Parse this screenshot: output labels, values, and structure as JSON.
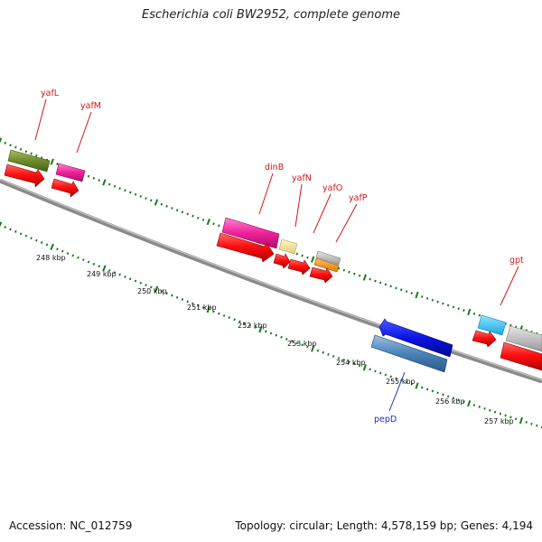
{
  "header": {
    "title": "Escherichia coli BW2952, complete genome"
  },
  "footer": {
    "accession": "Accession: NC_012759",
    "summary": "Topology: circular; Length: 4,578,159 bp; Genes: 4,194"
  },
  "axis": {
    "ticks": [
      "248 kbp",
      "249 kbp",
      "250 kbp",
      "251 kbp",
      "252 kbp",
      "253 kbp",
      "254 kbp",
      "255 kbp",
      "256 kbp",
      "257 kbp"
    ]
  },
  "genes": {
    "yafL": "yafL",
    "yafM": "yafM",
    "dinB": "dinB",
    "yafN": "yafN",
    "yafO": "yafO",
    "yafP": "yafP",
    "gpt": "gpt",
    "pepD": "pepD"
  },
  "colors": {
    "cds": "#ff0000",
    "tick": "#1a7a1a",
    "label_red": "#d01818",
    "label_blue": "#1a2fc7"
  }
}
